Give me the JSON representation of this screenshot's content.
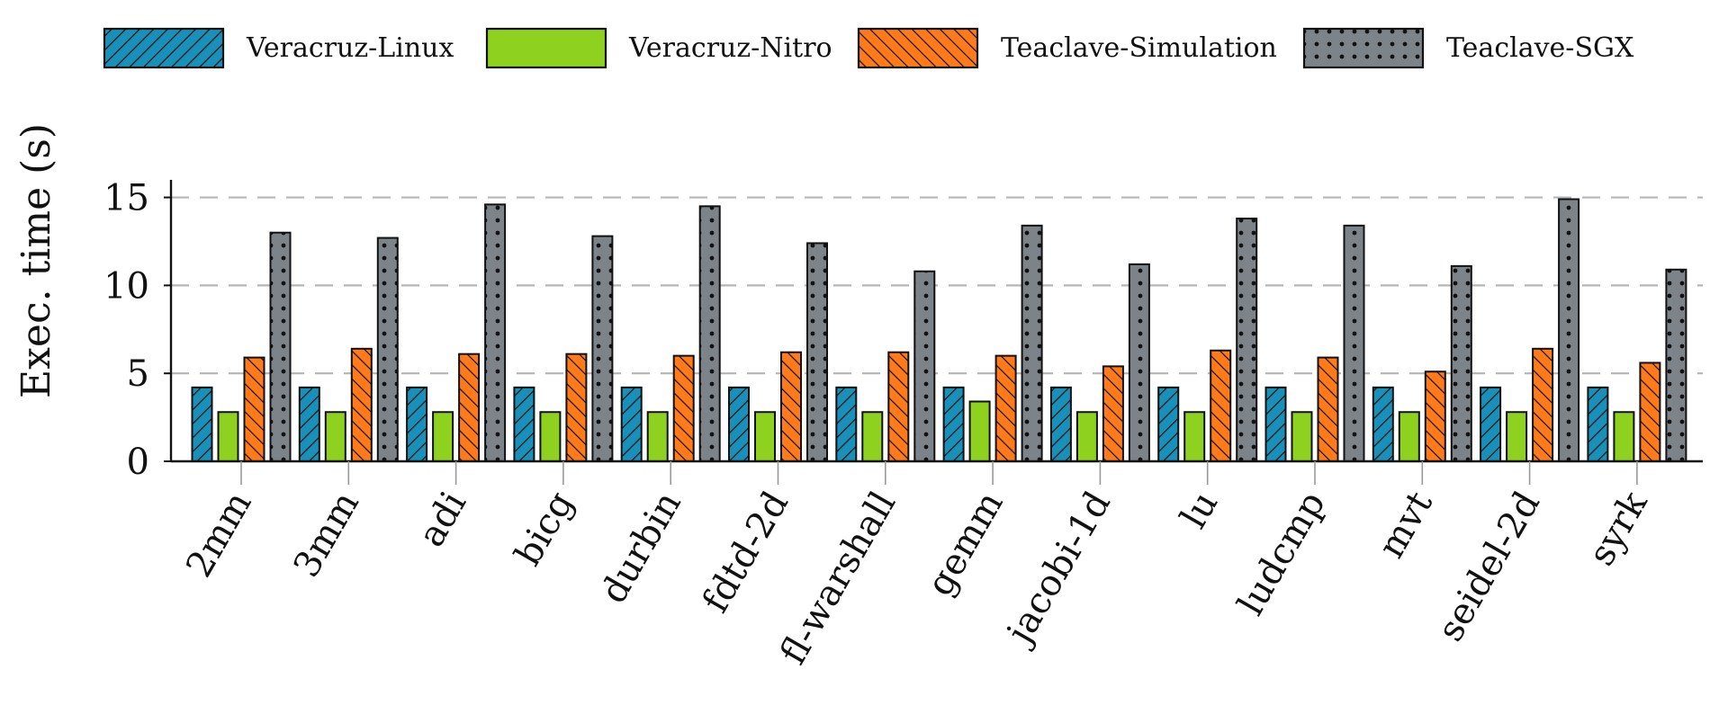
{
  "chart_data": {
    "type": "bar",
    "categories": [
      "2mm",
      "3mm",
      "adi",
      "bicg",
      "durbin",
      "fdtd-2d",
      "fl-warshall",
      "gemm",
      "jacobi-1d",
      "lu",
      "ludcmp",
      "mvt",
      "seidel-2d",
      "syrk"
    ],
    "series": [
      {
        "name": "Veracruz-Linux",
        "color": "#1a8fb8",
        "pattern": "diagonal-hatch",
        "values": [
          4.2,
          4.2,
          4.2,
          4.2,
          4.2,
          4.2,
          4.2,
          4.2,
          4.2,
          4.2,
          4.2,
          4.2,
          4.2,
          4.2
        ]
      },
      {
        "name": "Veracruz-Nitro",
        "color": "#8fd11f",
        "pattern": "solid",
        "values": [
          2.8,
          2.8,
          2.8,
          2.8,
          2.8,
          2.8,
          2.8,
          3.4,
          2.8,
          2.8,
          2.8,
          2.8,
          2.8,
          2.8
        ]
      },
      {
        "name": "Teaclave-Simulation",
        "color": "#ff7a1a",
        "pattern": "back-diagonal-hatch",
        "values": [
          5.9,
          6.4,
          6.1,
          6.1,
          6.0,
          6.2,
          6.2,
          6.0,
          5.4,
          6.3,
          5.9,
          5.1,
          6.4,
          5.6
        ]
      },
      {
        "name": "Teaclave-SGX",
        "color": "#7c8389",
        "pattern": "dots",
        "values": [
          13.0,
          12.7,
          14.6,
          12.8,
          14.5,
          12.4,
          10.8,
          13.4,
          11.2,
          13.8,
          13.4,
          11.1,
          14.9,
          10.9
        ]
      }
    ],
    "xlabel": "",
    "ylabel": "Exec. time (s)",
    "ylim": [
      0,
      16
    ],
    "yticks": [
      0,
      5,
      10,
      15
    ],
    "grid": "horizontal-dashed",
    "legend": "top"
  }
}
